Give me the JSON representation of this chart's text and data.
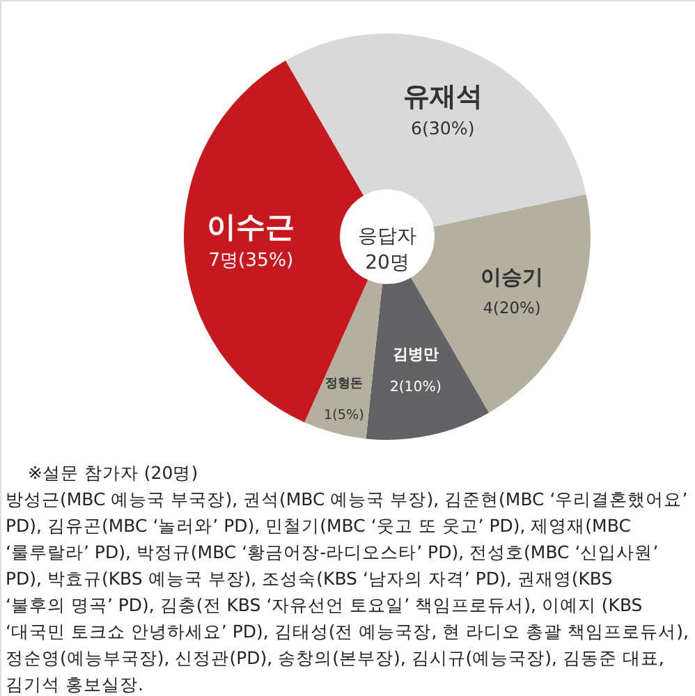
{
  "chart_data": {
    "type": "donut",
    "categories": [
      "유재석",
      "이승기",
      "김병만",
      "정형돈",
      "이수근"
    ],
    "values": [
      6,
      4,
      2,
      1,
      7
    ],
    "colors": [
      "#d9d9d9",
      "#b4b0a0",
      "#636365",
      "#b4b0a0",
      "#c8181f"
    ],
    "value_labels": [
      "6(30%)",
      "4(20%)",
      "2(10%)",
      "1(5%)",
      "7명(35%)"
    ],
    "annotations": [
      "응답자 20명",
      "※설문 참가자 (20명)",
      "방성근(MBC 예능국 부국장), 권석(MBC 예능국 부장), 김준현(MBC ‘우리결혼했어요’ PD), 김유곤(MBC ‘놀러와’ PD), 민철기(MBC ‘웃고 또 웃고’ PD), 제영재(MBC ‘룰루랄라’ PD), 박정규(MBC ‘황금어장-라디오스타’ PD), 전성호(MBC ‘신입사원’ PD), 박효규(KBS 예능국 부장), 조성숙(KBS ‘남자의 자격’ PD), 권재영(KBS ‘불후의 명곡’ PD), 김충(전 KBS ‘자유선언 토요일’ 책임프로듀서), 이예지 (KBS ‘대국민 토크쇼 안녕하세요’ PD), 김태성(전 예능국장, 현 라디오 총괄 책임프로듀서), 정순영(예능부국장), 신정관(PD), 송창의(본부장), 김시규(예능국장), 김동준 대표, 김기석 홍보실장."
    ]
  }
}
